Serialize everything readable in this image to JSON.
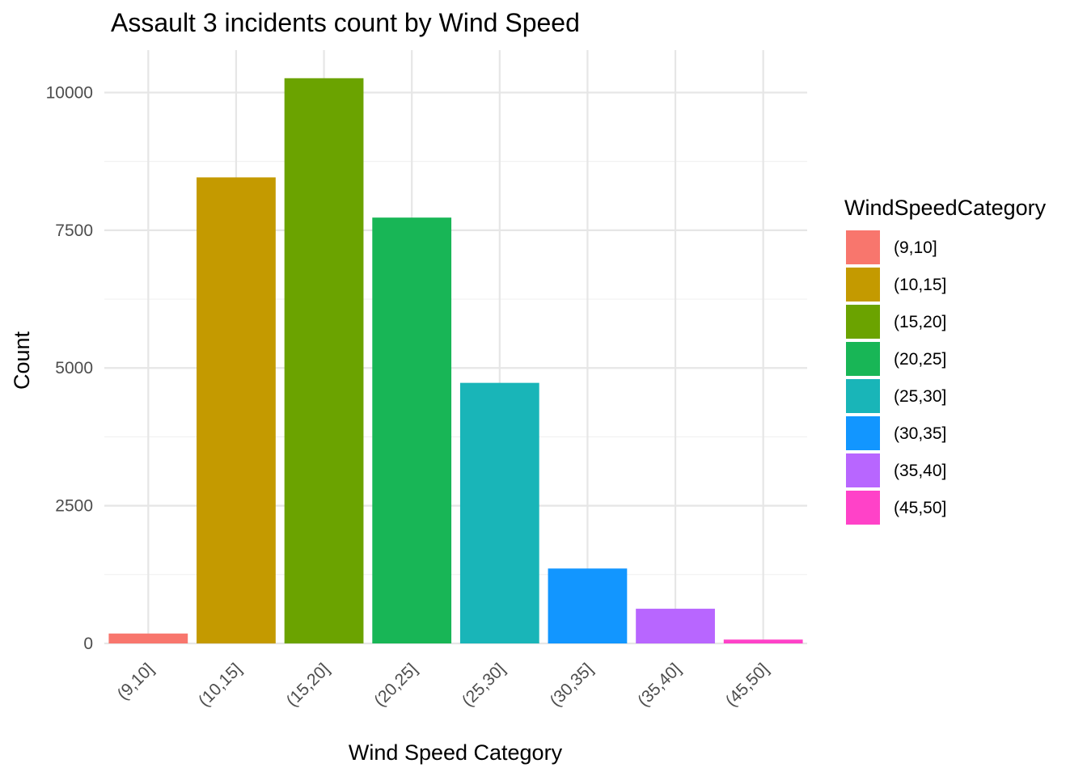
{
  "chart_data": {
    "type": "bar",
    "title": "Assault 3 incidents count by Wind Speed",
    "xlabel": "Wind Speed Category",
    "ylabel": "Count",
    "categories": [
      "(9,10]",
      "(10,15]",
      "(15,20]",
      "(20,25]",
      "(25,30]",
      "(30,35]",
      "(35,40]",
      "(45,50]"
    ],
    "values": [
      180,
      8460,
      10260,
      7730,
      4730,
      1360,
      630,
      70
    ],
    "colors": [
      "#F8766D",
      "#C49A00",
      "#6BA300",
      "#18B656",
      "#19B5B8",
      "#1296FF",
      "#B866FF",
      "#FF42C8"
    ],
    "ylim": [
      0,
      10770
    ],
    "yticks": [
      0,
      2500,
      5000,
      7500,
      10000
    ],
    "ytick_labels": [
      "0",
      "2500",
      "5000",
      "7500",
      "10000"
    ],
    "grid": true,
    "legend": {
      "title": "WindSpeedCategory",
      "position": "right",
      "items": [
        "(9,10]",
        "(10,15]",
        "(15,20]",
        "(20,25]",
        "(25,30]",
        "(30,35]",
        "(35,40]",
        "(45,50]"
      ]
    }
  }
}
